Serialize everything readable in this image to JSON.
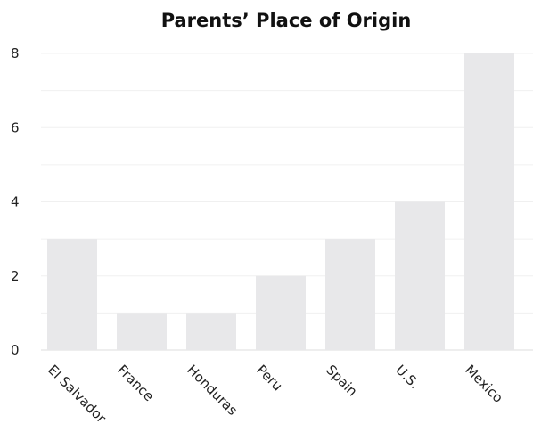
{
  "chart_data": {
    "type": "bar",
    "title": "Parents’ Place of Origin",
    "xlabel": "",
    "ylabel": "",
    "categories": [
      "El Salvador",
      "France",
      "Honduras",
      "Peru",
      "Spain",
      "U.S.",
      "Mexico"
    ],
    "values": [
      3,
      1,
      1,
      2,
      3,
      4,
      8
    ],
    "ylim": [
      0,
      8
    ],
    "yticks": [
      0,
      2,
      4,
      6,
      8
    ],
    "grid": true,
    "legend": "none",
    "colors": {
      "bar": "#e8e8ea",
      "grid": "#f0f0f0",
      "axis": "#dddddd",
      "text": "#222222"
    }
  }
}
